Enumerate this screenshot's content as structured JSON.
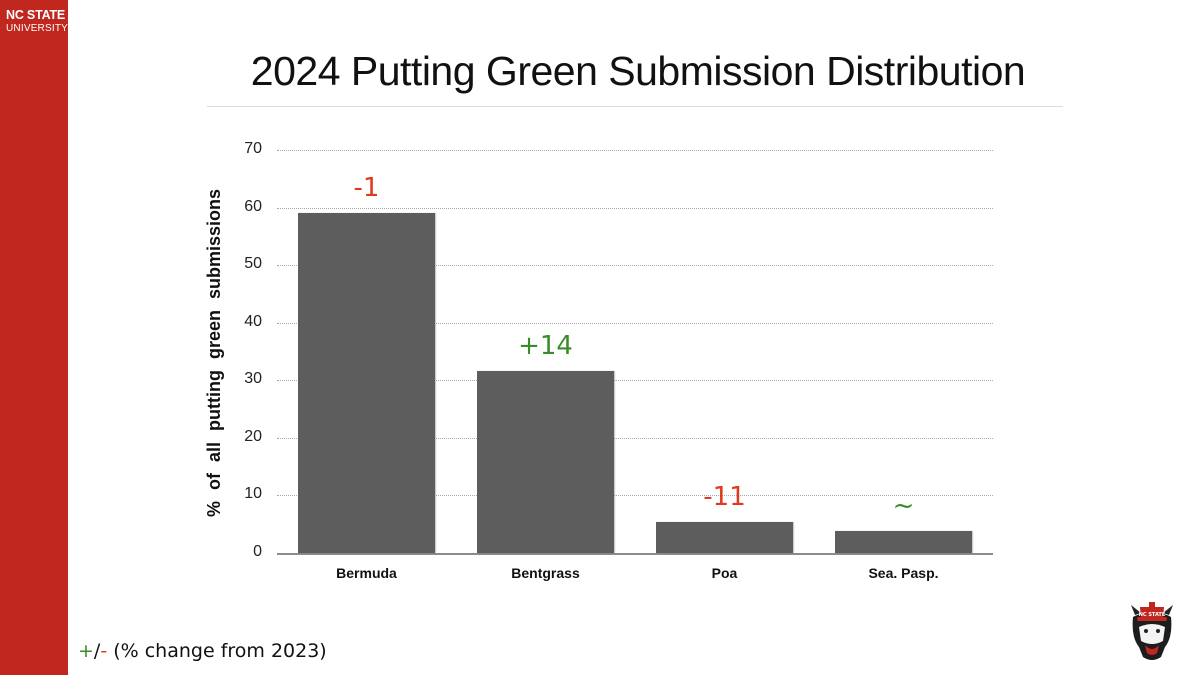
{
  "brand": {
    "line1": "NC STATE",
    "line2": "UNIVERSITY",
    "color": "#c0271f"
  },
  "title": "2024 Putting Green Submission Distribution",
  "legend": {
    "plus": "+",
    "slash": "/",
    "minus": "-",
    "text": " (% change from 2023)",
    "plus_color": "#3a8c2a",
    "minus_color": "#e03a1e"
  },
  "chart_data": {
    "type": "bar",
    "title": "2024 Putting Green Submission Distribution",
    "xlabel": "",
    "ylabel": "% of all putting green submissions",
    "categories": [
      "Bermuda",
      "Bentgrass",
      "Poa",
      "Sea. Pasp."
    ],
    "values": [
      59,
      31.6,
      5.4,
      3.8
    ],
    "annotations": [
      "-1",
      "+14",
      "-11",
      "~"
    ],
    "annotation_colors": [
      "#e03a1e",
      "#3a8c2a",
      "#e03a1e",
      "#3a8c2a"
    ],
    "annotation_meaning": "+/- (% change from 2023)",
    "ylim": [
      0,
      70
    ],
    "yticks": [
      "0",
      "10",
      "20",
      "30",
      "40",
      "50",
      "60",
      "70"
    ],
    "grid": true,
    "bar_color": "#5d5d5d",
    "legend_position": "bottom-left"
  }
}
